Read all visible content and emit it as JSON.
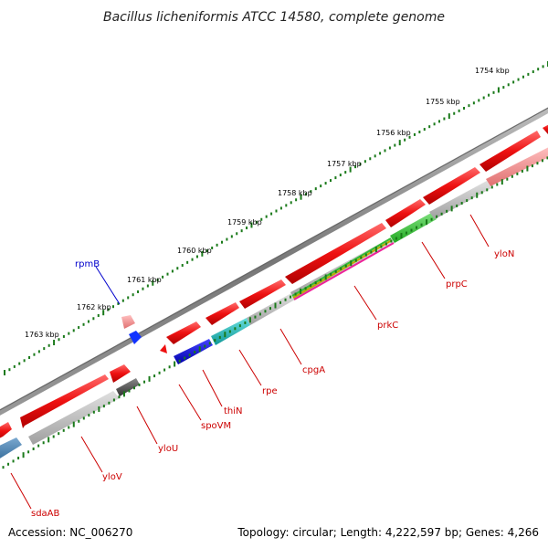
{
  "title": "Bacillus licheniformis ATCC 14580, complete genome",
  "accession": "Accession: NC_006270",
  "summary": "Topology: circular; Length: 4,222,597 bp; Genes: 4,266",
  "scale_labels": [
    "1754 kbp",
    "1755 kbp",
    "1756 kbp",
    "1757 kbp",
    "1758 kbp",
    "1759 kbp",
    "1760 kbp",
    "1761 kbp",
    "1762 kbp",
    "1763 kbp"
  ],
  "gene_labels": [
    "yloN",
    "prpC",
    "prkC",
    "cpgA",
    "rpe",
    "thiN",
    "spoVM",
    "yloU",
    "yloV",
    "sdaAB",
    "rpmB"
  ],
  "colors": {
    "backbone": "#808080",
    "cds": "#ee1111",
    "cds_light": "#f08080",
    "feature_gray": "#b8b8b8",
    "feature_green": "#33cc33",
    "feature_cyan": "#22bbbb",
    "feature_blue": "#1111dd",
    "feature_steel": "#4a86b8",
    "feature_dark": "#555555",
    "ticks": "#1a7a1a",
    "label_red": "#cc0000",
    "label_blue": "#0000cc"
  }
}
